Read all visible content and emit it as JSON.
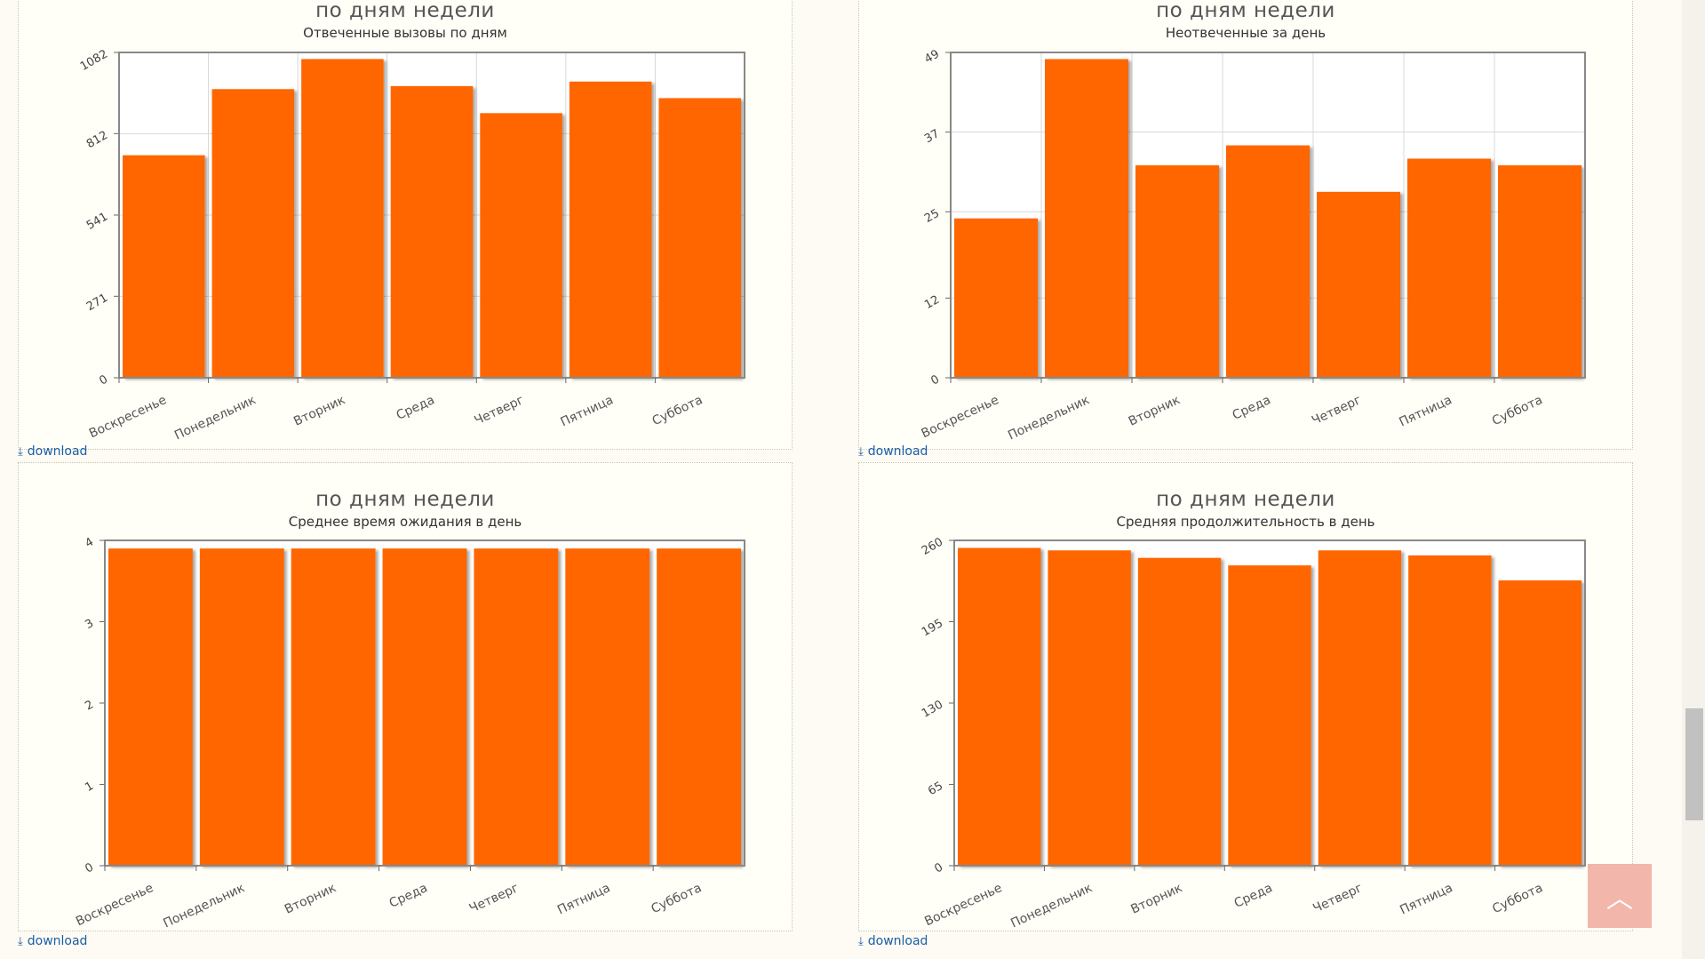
{
  "theme": {
    "bar_color": "#ff6600",
    "accent": "#1a5ea8"
  },
  "download_label": "download",
  "scroll_top_icon": "chevron-up-icon",
  "chart_data": [
    {
      "type": "bar",
      "title": "по дням недели",
      "subtitle": "Отвеченные вызовы по дням",
      "categories": [
        "Воскресенье",
        "Понедельник",
        "Вторник",
        "Среда",
        "Четверг",
        "Пятница",
        "Суббота"
      ],
      "values": [
        740,
        960,
        1060,
        970,
        880,
        985,
        930
      ],
      "ylim": [
        0,
        1082
      ],
      "yticks": [
        0,
        271,
        541,
        812,
        1082
      ],
      "grid": true
    },
    {
      "type": "bar",
      "title": "по дням недели",
      "subtitle": "Неотвеченные за день",
      "categories": [
        "Воскресенье",
        "Понедельник",
        "Вторник",
        "Среда",
        "Четверг",
        "Пятница",
        "Суббота"
      ],
      "values": [
        24,
        48,
        32,
        35,
        28,
        33,
        32
      ],
      "ylim": [
        0,
        49
      ],
      "yticks": [
        0,
        12,
        25,
        37,
        49
      ],
      "grid": true
    },
    {
      "type": "bar",
      "title": "по дням недели",
      "subtitle": "Среднее время ожидания в день",
      "categories": [
        "Воскресенье",
        "Понедельник",
        "Вторник",
        "Среда",
        "Четверг",
        "Пятница",
        "Суббота"
      ],
      "values": [
        3.9,
        3.9,
        3.9,
        3.9,
        3.9,
        3.9,
        3.9
      ],
      "ylim": [
        0,
        4
      ],
      "yticks": [
        0,
        1,
        2,
        3,
        4
      ],
      "grid": false
    },
    {
      "type": "bar",
      "title": "по дням недели",
      "subtitle": "Средняя продолжительность в день",
      "categories": [
        "Воскресенье",
        "Понедельник",
        "Вторник",
        "Среда",
        "Четверг",
        "Пятница",
        "Суббота"
      ],
      "values": [
        254,
        252,
        246,
        240,
        252,
        248,
        228
      ],
      "ylim": [
        0,
        260
      ],
      "yticks": [
        0,
        65,
        130,
        195,
        260
      ],
      "grid": false
    }
  ]
}
